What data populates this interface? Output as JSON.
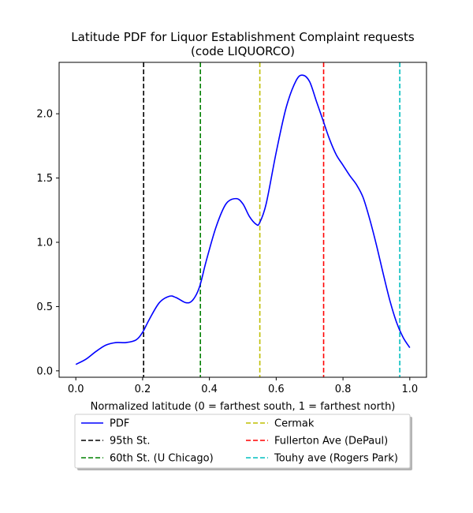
{
  "chart_data": {
    "type": "line",
    "title_line1": "Latitude PDF for Liquor Establishment Complaint  requests",
    "title_line2": "(code LIQUORCO)",
    "xlabel": "Normalized latitude (0 = farthest south, 1 = farthest north)",
    "ylabel": "",
    "xlim": [
      -0.05,
      1.05
    ],
    "ylim": [
      -0.05,
      2.4
    ],
    "xticks": [
      "0.0",
      "0.2",
      "0.4",
      "0.6",
      "0.8",
      "1.0"
    ],
    "xtick_values": [
      0.0,
      0.2,
      0.4,
      0.6,
      0.8,
      1.0
    ],
    "yticks": [
      "0.0",
      "0.5",
      "1.0",
      "1.5",
      "2.0"
    ],
    "ytick_values": [
      0.0,
      0.5,
      1.0,
      1.5,
      2.0
    ],
    "grid": false,
    "legend_placement": "below plot",
    "series": [
      {
        "name": "PDF",
        "color": "#0000ff",
        "style": "solid",
        "x": [
          0.0,
          0.03,
          0.06,
          0.09,
          0.12,
          0.15,
          0.18,
          0.2,
          0.22,
          0.25,
          0.28,
          0.3,
          0.33,
          0.35,
          0.37,
          0.39,
          0.42,
          0.45,
          0.48,
          0.5,
          0.52,
          0.54,
          0.55,
          0.57,
          0.6,
          0.63,
          0.66,
          0.68,
          0.7,
          0.72,
          0.74,
          0.76,
          0.78,
          0.8,
          0.82,
          0.84,
          0.86,
          0.88,
          0.9,
          0.92,
          0.94,
          0.96,
          0.98,
          1.0
        ],
        "y": [
          0.05,
          0.09,
          0.15,
          0.2,
          0.22,
          0.22,
          0.24,
          0.3,
          0.4,
          0.53,
          0.58,
          0.57,
          0.53,
          0.55,
          0.65,
          0.85,
          1.12,
          1.3,
          1.34,
          1.3,
          1.2,
          1.14,
          1.15,
          1.3,
          1.7,
          2.05,
          2.26,
          2.3,
          2.25,
          2.1,
          1.95,
          1.8,
          1.68,
          1.6,
          1.52,
          1.45,
          1.35,
          1.18,
          0.98,
          0.76,
          0.55,
          0.38,
          0.26,
          0.18
        ]
      },
      {
        "name": "95th St.",
        "color": "#000000",
        "style": "dashed",
        "x": 0.203
      },
      {
        "name": "60th St. (U Chicago)",
        "color": "#008000",
        "style": "dashed",
        "x": 0.373
      },
      {
        "name": "Cermak",
        "color": "#bfbf00",
        "style": "dashed",
        "x": 0.551
      },
      {
        "name": "Fullerton Ave (DePaul)",
        "color": "#ff0000",
        "style": "dashed",
        "x": 0.742
      },
      {
        "name": "Touhy ave (Rogers Park)",
        "color": "#00bfbf",
        "style": "dashed",
        "x": 0.97
      }
    ]
  }
}
